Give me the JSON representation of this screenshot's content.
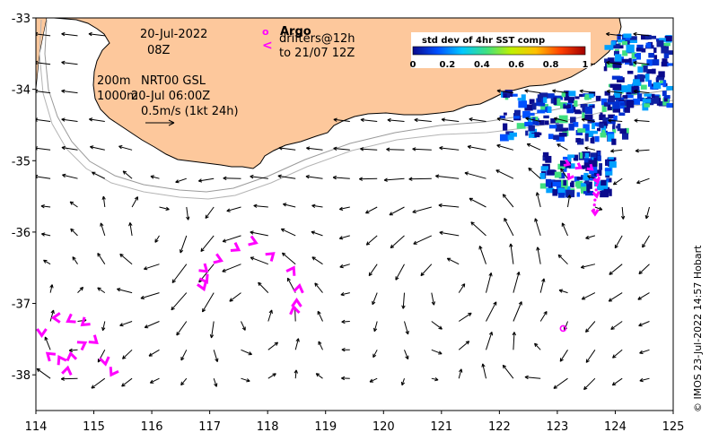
{
  "map": {
    "lon_range": [
      114,
      125
    ],
    "lat_range": [
      -38.5,
      -33
    ],
    "x_ticks": [
      "114",
      "115",
      "116",
      "117",
      "118",
      "119",
      "120",
      "121",
      "122",
      "123",
      "124",
      "125"
    ],
    "y_ticks": [
      "-33",
      "-34",
      "-35",
      "-36",
      "-37",
      "-38"
    ],
    "land_color": "#fdc89c",
    "arrow_color": "#000000",
    "drifter_color": "#ff00ff",
    "isobath_color": "#9a9a9a"
  },
  "annotations": {
    "date": "20-Jul-2022",
    "hour": "08Z",
    "depth_200": "200m",
    "nrt": "NRT00 GSL",
    "depth_1000": "1000m",
    "analysis_time": "20-Jul 06:00Z",
    "scale_label": "0.5m/s (1kt 24h)"
  },
  "legend": {
    "argo_marker": "o",
    "argo_label": "Argo",
    "drifter_marker": "<",
    "drifter_label_1": "drifters@12h",
    "drifter_label_2": "to 21/07 12Z"
  },
  "colorbar": {
    "title": "std dev of 4hr SST comp",
    "ticks": [
      "0",
      "0.2",
      "0.4",
      "0.6",
      "0.8",
      "1"
    ],
    "range": [
      0,
      1
    ],
    "colors": [
      "#0a0a8c",
      "#0050ff",
      "#00c8ff",
      "#40e080",
      "#c0f000",
      "#ffc000",
      "#ff4000",
      "#a00000"
    ]
  },
  "argo_float": {
    "lon": 123.1,
    "lat": -37.35
  },
  "credit": "© IMOS 23-Jul-2022 14:57 Hobart"
}
